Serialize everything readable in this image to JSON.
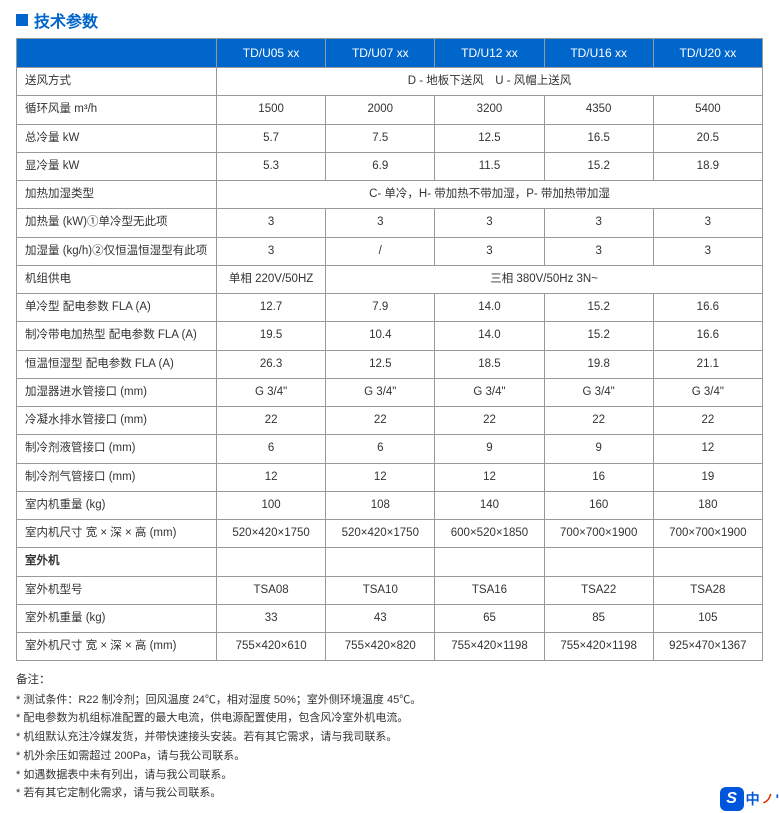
{
  "title": "技术参数",
  "headers": [
    "TD/U05 xx",
    "TD/U07 xx",
    "TD/U12 xx",
    "TD/U16 xx",
    "TD/U20 xx"
  ],
  "rows": [
    {
      "label": "送风方式",
      "span": "D - 地板下送风　U - 风帽上送风"
    },
    {
      "label": "循环风量 m³/h",
      "vals": [
        "1500",
        "2000",
        "3200",
        "4350",
        "5400"
      ]
    },
    {
      "label": "总冷量 kW",
      "vals": [
        "5.7",
        "7.5",
        "12.5",
        "16.5",
        "20.5"
      ]
    },
    {
      "label": "显冷量 kW",
      "vals": [
        "5.3",
        "6.9",
        "11.5",
        "15.2",
        "18.9"
      ]
    },
    {
      "label": "加热加湿类型",
      "span": "C- 单冷，H- 带加热不带加湿，P- 带加热带加湿"
    },
    {
      "label": "加热量 (kW)①单冷型无此项",
      "vals": [
        "3",
        "3",
        "3",
        "3",
        "3"
      ]
    },
    {
      "label": "加湿量 (kg/h)②仅恒温恒湿型有此项",
      "vals": [
        "3",
        "/",
        "3",
        "3",
        "3"
      ]
    },
    {
      "label": "机组供电",
      "custom": "power"
    },
    {
      "label": "单冷型 配电参数 FLA (A)",
      "vals": [
        "12.7",
        "7.9",
        "14.0",
        "15.2",
        "16.6"
      ]
    },
    {
      "label": "制冷带电加热型 配电参数 FLA (A)",
      "vals": [
        "19.5",
        "10.4",
        "14.0",
        "15.2",
        "16.6"
      ]
    },
    {
      "label": "恒温恒湿型 配电参数 FLA (A)",
      "vals": [
        "26.3",
        "12.5",
        "18.5",
        "19.8",
        "21.1"
      ]
    },
    {
      "label": "加湿器进水管接口 (mm)",
      "vals": [
        "G 3/4\"",
        "G 3/4\"",
        "G 3/4\"",
        "G 3/4\"",
        "G 3/4\""
      ]
    },
    {
      "label": "冷凝水排水管接口 (mm)",
      "vals": [
        "22",
        "22",
        "22",
        "22",
        "22"
      ]
    },
    {
      "label": "制冷剂液管接口 (mm)",
      "vals": [
        "6",
        "6",
        "9",
        "9",
        "12"
      ]
    },
    {
      "label": "制冷剂气管接口 (mm)",
      "vals": [
        "12",
        "12",
        "12",
        "16",
        "19"
      ]
    },
    {
      "label": "室内机重量 (kg)",
      "vals": [
        "100",
        "108",
        "140",
        "160",
        "180"
      ]
    },
    {
      "label": "室内机尺寸 宽 × 深 × 高 (mm)",
      "vals": [
        "520×420×1750",
        "520×420×1750",
        "600×520×1850",
        "700×700×1900",
        "700×700×1900"
      ]
    },
    {
      "label": "室外机",
      "section": true
    },
    {
      "label": "室外机型号",
      "vals": [
        "TSA08",
        "TSA10",
        "TSA16",
        "TSA22",
        "TSA28"
      ]
    },
    {
      "label": "室外机重量 (kg)",
      "vals": [
        "33",
        "43",
        "65",
        "85",
        "105"
      ]
    },
    {
      "label": "室外机尺寸 宽 × 深 × 高 (mm)",
      "vals": [
        "755×420×610",
        "755×420×820",
        "755×420×1198",
        "755×420×1198",
        "925×470×1367"
      ]
    }
  ],
  "power": {
    "left": "单相 220V/50HZ",
    "right": "三相 380V/50Hz 3N~"
  },
  "notes_title": "备注：",
  "notes": [
    "* 测试条件：R22 制冷剂；回风温度 24℃，相对湿度 50%；室外侧环境温度 45℃。",
    "* 配电参数为机组标准配置的最大电流，供电源配置使用，包含风冷室外机电流。",
    "* 机组默认充注冷媒发货，并带快速接头安装。若有其它需求，请与我司联系。",
    "* 机外余压如需超过 200Pa，请与我公司联系。",
    "* 如遇数据表中未有列出，请与我公司联系。",
    "* 若有其它定制化需求，请与我公司联系。"
  ],
  "logo": {
    "s": "S",
    "text": "中",
    "dot": "'"
  }
}
